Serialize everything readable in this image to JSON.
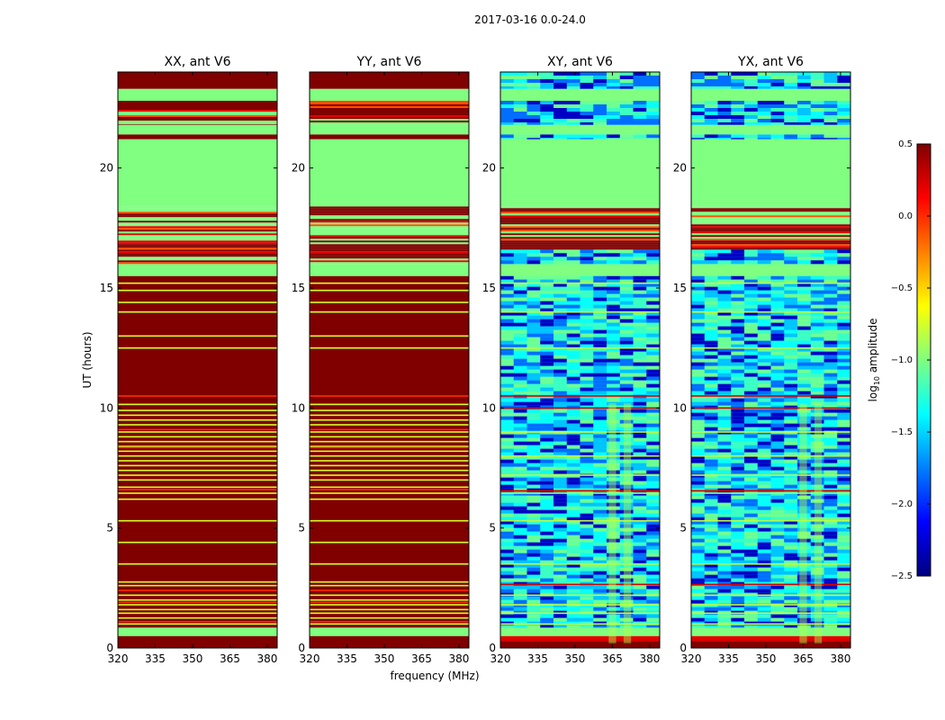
{
  "figure": {
    "suptitle": "2017-03-16 0.0-24.0"
  },
  "chart_data": {
    "type": "heatmap",
    "title": "2017-03-16 0.0-24.0",
    "xlabel": "frequency (MHz)",
    "ylabel": "UT (hours)",
    "xlim": [
      320,
      384
    ],
    "ylim": [
      0,
      24
    ],
    "x_ticks": [
      "320",
      "335",
      "350",
      "365",
      "380"
    ],
    "x_tick_values": [
      320,
      335,
      350,
      365,
      380
    ],
    "y_ticks": [
      "0",
      "5",
      "10",
      "15",
      "20"
    ],
    "y_tick_values": [
      0,
      5,
      10,
      15,
      20
    ],
    "panels": [
      {
        "title": "XX, ant V6",
        "kind": "auto"
      },
      {
        "title": "YY, ant V6",
        "kind": "auto"
      },
      {
        "title": "XY, ant V6",
        "kind": "cross"
      },
      {
        "title": "YX, ant V6",
        "kind": "cross"
      }
    ],
    "colorbar": {
      "label_main": "log",
      "label_sub": "10",
      "label_tail": " amplitude",
      "range": [
        -2.5,
        0.5
      ],
      "ticks": [
        "0.5",
        "0.0",
        "−0.5",
        "−1.0",
        "−1.5",
        "−2.0",
        "−2.5"
      ],
      "tick_values": [
        0.5,
        0.0,
        -0.5,
        -1.0,
        -1.5,
        -2.0,
        -2.5
      ],
      "colormap": "jet"
    },
    "time_bands_hours": [
      {
        "from": 0.0,
        "to": 0.3,
        "auto": 0.5,
        "cross": 0.5
      },
      {
        "from": 0.3,
        "to": 0.5,
        "auto": 0.5,
        "cross": 0.2
      },
      {
        "from": 0.5,
        "to": 0.85,
        "auto": -1.0,
        "cross": -1.0
      },
      {
        "from": 0.85,
        "to": 15.5,
        "auto": 0.5,
        "cross": "noise"
      },
      {
        "from": 15.5,
        "to": 16.0,
        "auto": -1.0,
        "cross": -1.0
      },
      {
        "from": 16.0,
        "to": 16.6,
        "auto": "mixed",
        "cross": "noise"
      },
      {
        "from": 16.6,
        "to": 18.4,
        "auto": "mixed",
        "cross": "mixed"
      },
      {
        "from": 18.4,
        "to": 21.2,
        "auto": -1.0,
        "cross": -1.0
      },
      {
        "from": 21.2,
        "to": 21.4,
        "auto": 0.5,
        "cross": "noise"
      },
      {
        "from": 21.4,
        "to": 21.8,
        "auto": -1.0,
        "cross": -1.0
      },
      {
        "from": 21.8,
        "to": 22.8,
        "auto": "mixed",
        "cross": "noise"
      },
      {
        "from": 22.8,
        "to": 23.3,
        "auto": -1.0,
        "cross": -1.0
      },
      {
        "from": 23.3,
        "to": 24.0,
        "auto": 0.5,
        "cross": "noise"
      }
    ],
    "line_hours": {
      "auto_green": [
        1.0,
        1.25,
        1.45,
        1.6,
        1.8,
        2.0,
        2.2,
        2.6,
        2.75,
        3.5,
        4.4,
        5.3,
        6.2,
        6.45,
        6.7,
        7.0,
        7.2,
        7.4,
        7.6,
        7.8,
        8.0,
        8.2,
        8.4,
        8.6,
        8.8,
        9.0,
        9.3,
        9.5,
        9.7,
        9.9,
        10.15,
        12.5,
        13.0,
        14.0,
        14.4,
        14.9,
        15.2
      ],
      "auto_orange": [
        1.1,
        1.9,
        2.4,
        6.6,
        8.35,
        9.1,
        10.5
      ],
      "cross_green": [
        1.0,
        1.45,
        1.8,
        2.2,
        3.5,
        5.3,
        6.45,
        7.2,
        8.0,
        9.0,
        12.5,
        14.0,
        15.2
      ],
      "cross_red": [
        0.3,
        2.65,
        6.55,
        10.0,
        10.5
      ]
    }
  }
}
